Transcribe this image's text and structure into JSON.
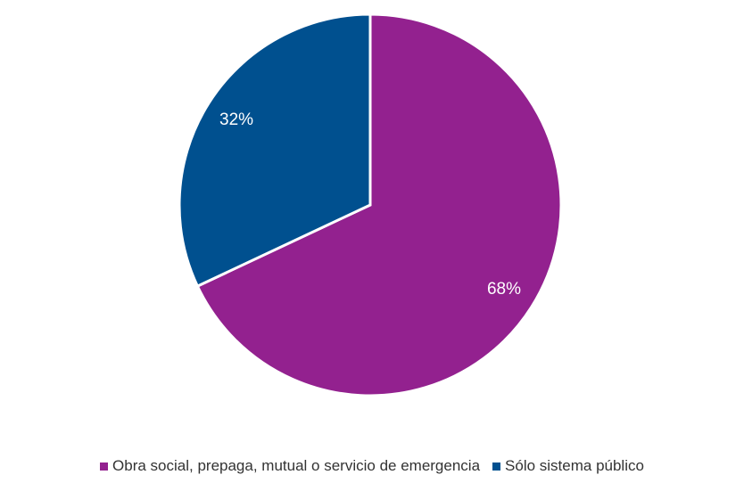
{
  "chart_data": {
    "type": "pie",
    "categories": [
      "Obra social, prepaga, mutual o servicio de emergencia",
      "Sólo sistema público"
    ],
    "values": [
      68,
      32
    ],
    "value_labels": [
      "68%",
      "32%"
    ],
    "colors": [
      "#93218f",
      "#00508f"
    ],
    "legend": "bottom"
  }
}
